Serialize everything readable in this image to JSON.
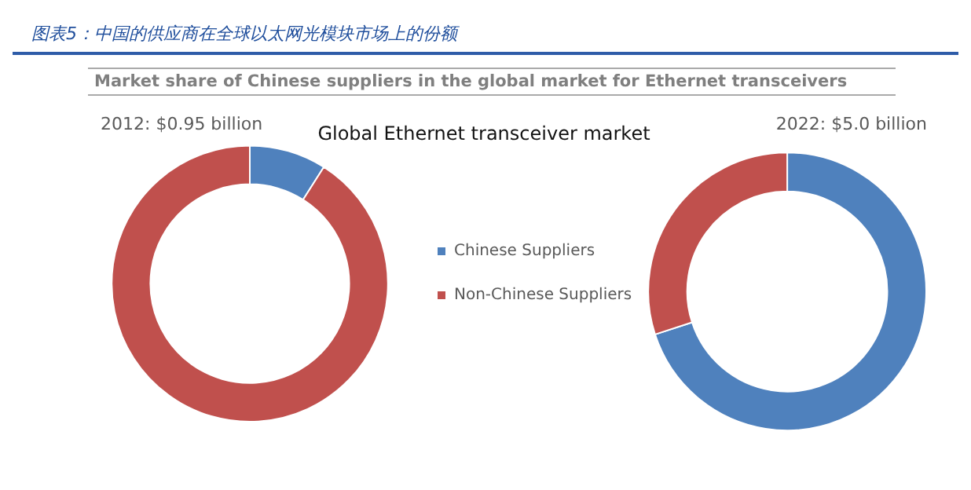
{
  "chart_data": [
    {
      "type": "donut",
      "title": "2012: $0.95 billion",
      "annotations": [
        "图表5：中国的供应商在全球以太网光模块市场上的份额",
        "Market share of Chinese suppliers in the global market for Ethernet transceivers",
        "Global Ethernet transceiver market"
      ],
      "categories": [
        null,
        null
      ],
      "values": [
        9,
        91
      ],
      "colors": [
        "#4f81bd",
        "#c0504d"
      ],
      "legend": false
    },
    {
      "type": "donut",
      "title": "2022: $5.0 billion",
      "categories": [
        "Chinese Suppliers",
        "Non-Chinese Suppliers"
      ],
      "values": [
        70,
        30
      ],
      "colors": [
        "#4f81bd",
        "#c0504d"
      ],
      "legend": "left"
    }
  ]
}
